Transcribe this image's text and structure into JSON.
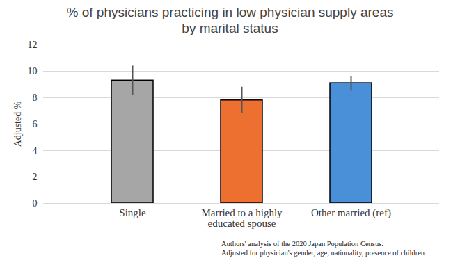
{
  "chart_data": {
    "type": "bar",
    "title": "% of physicians practicing in low physician supply areas by marital status",
    "y_label": "Adjusted %",
    "categories": [
      "Single",
      "Married to a highly educated spouse",
      "Other married (ref)"
    ],
    "values": [
      9.3,
      7.8,
      9.1
    ],
    "ci_low": [
      8.2,
      6.8,
      8.5
    ],
    "ci_high": [
      10.4,
      8.8,
      9.6
    ],
    "colors": [
      "#a6a6a6",
      "#ed7031",
      "#4a90d9"
    ],
    "ylim": [
      0,
      12
    ],
    "yticks": [
      0,
      2,
      4,
      6,
      8,
      10,
      12
    ],
    "grid": true,
    "caption": [
      "Authors' analysis of the 2020 Japan Population Census.",
      "Adjusted for physician's gender, age, nationality, presence of children."
    ]
  }
}
